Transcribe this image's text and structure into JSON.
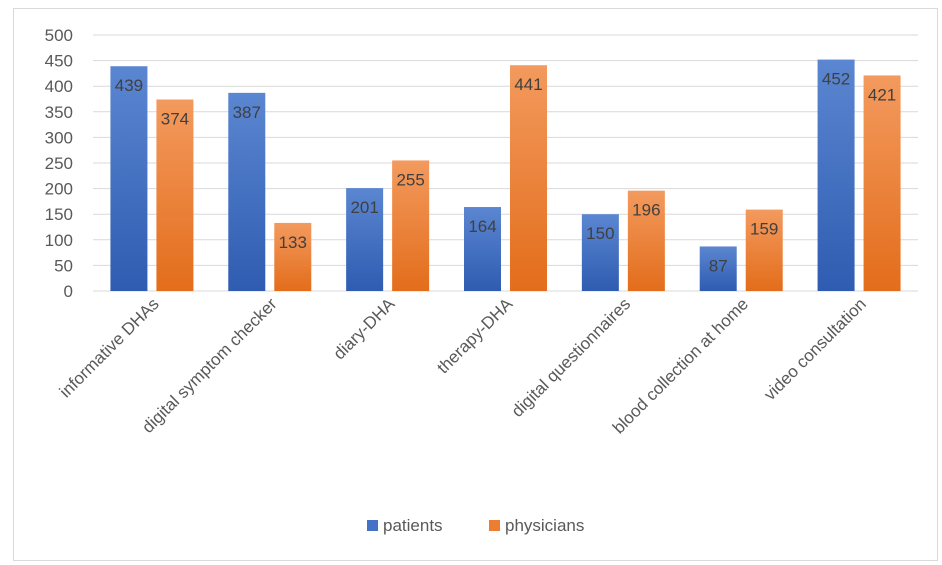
{
  "chart_data": {
    "type": "bar",
    "title": "",
    "xlabel": "",
    "ylabel": "",
    "ylim": [
      0,
      500
    ],
    "yticks": [
      0,
      50,
      100,
      150,
      200,
      250,
      300,
      350,
      400,
      450,
      500
    ],
    "grid": true,
    "legend_position": "bottom",
    "categories": [
      "informative DHAs",
      "digital symptom checker",
      "diary-DHA",
      "therapy-DHA",
      "digital questionnaires",
      "blood collection at home",
      "video consultation"
    ],
    "series": [
      {
        "name": "patients",
        "color": "#4472c4",
        "values": [
          439,
          387,
          201,
          164,
          150,
          87,
          452
        ]
      },
      {
        "name": "physicians",
        "color": "#ed7d31",
        "values": [
          374,
          133,
          255,
          441,
          196,
          159,
          421
        ]
      }
    ]
  }
}
